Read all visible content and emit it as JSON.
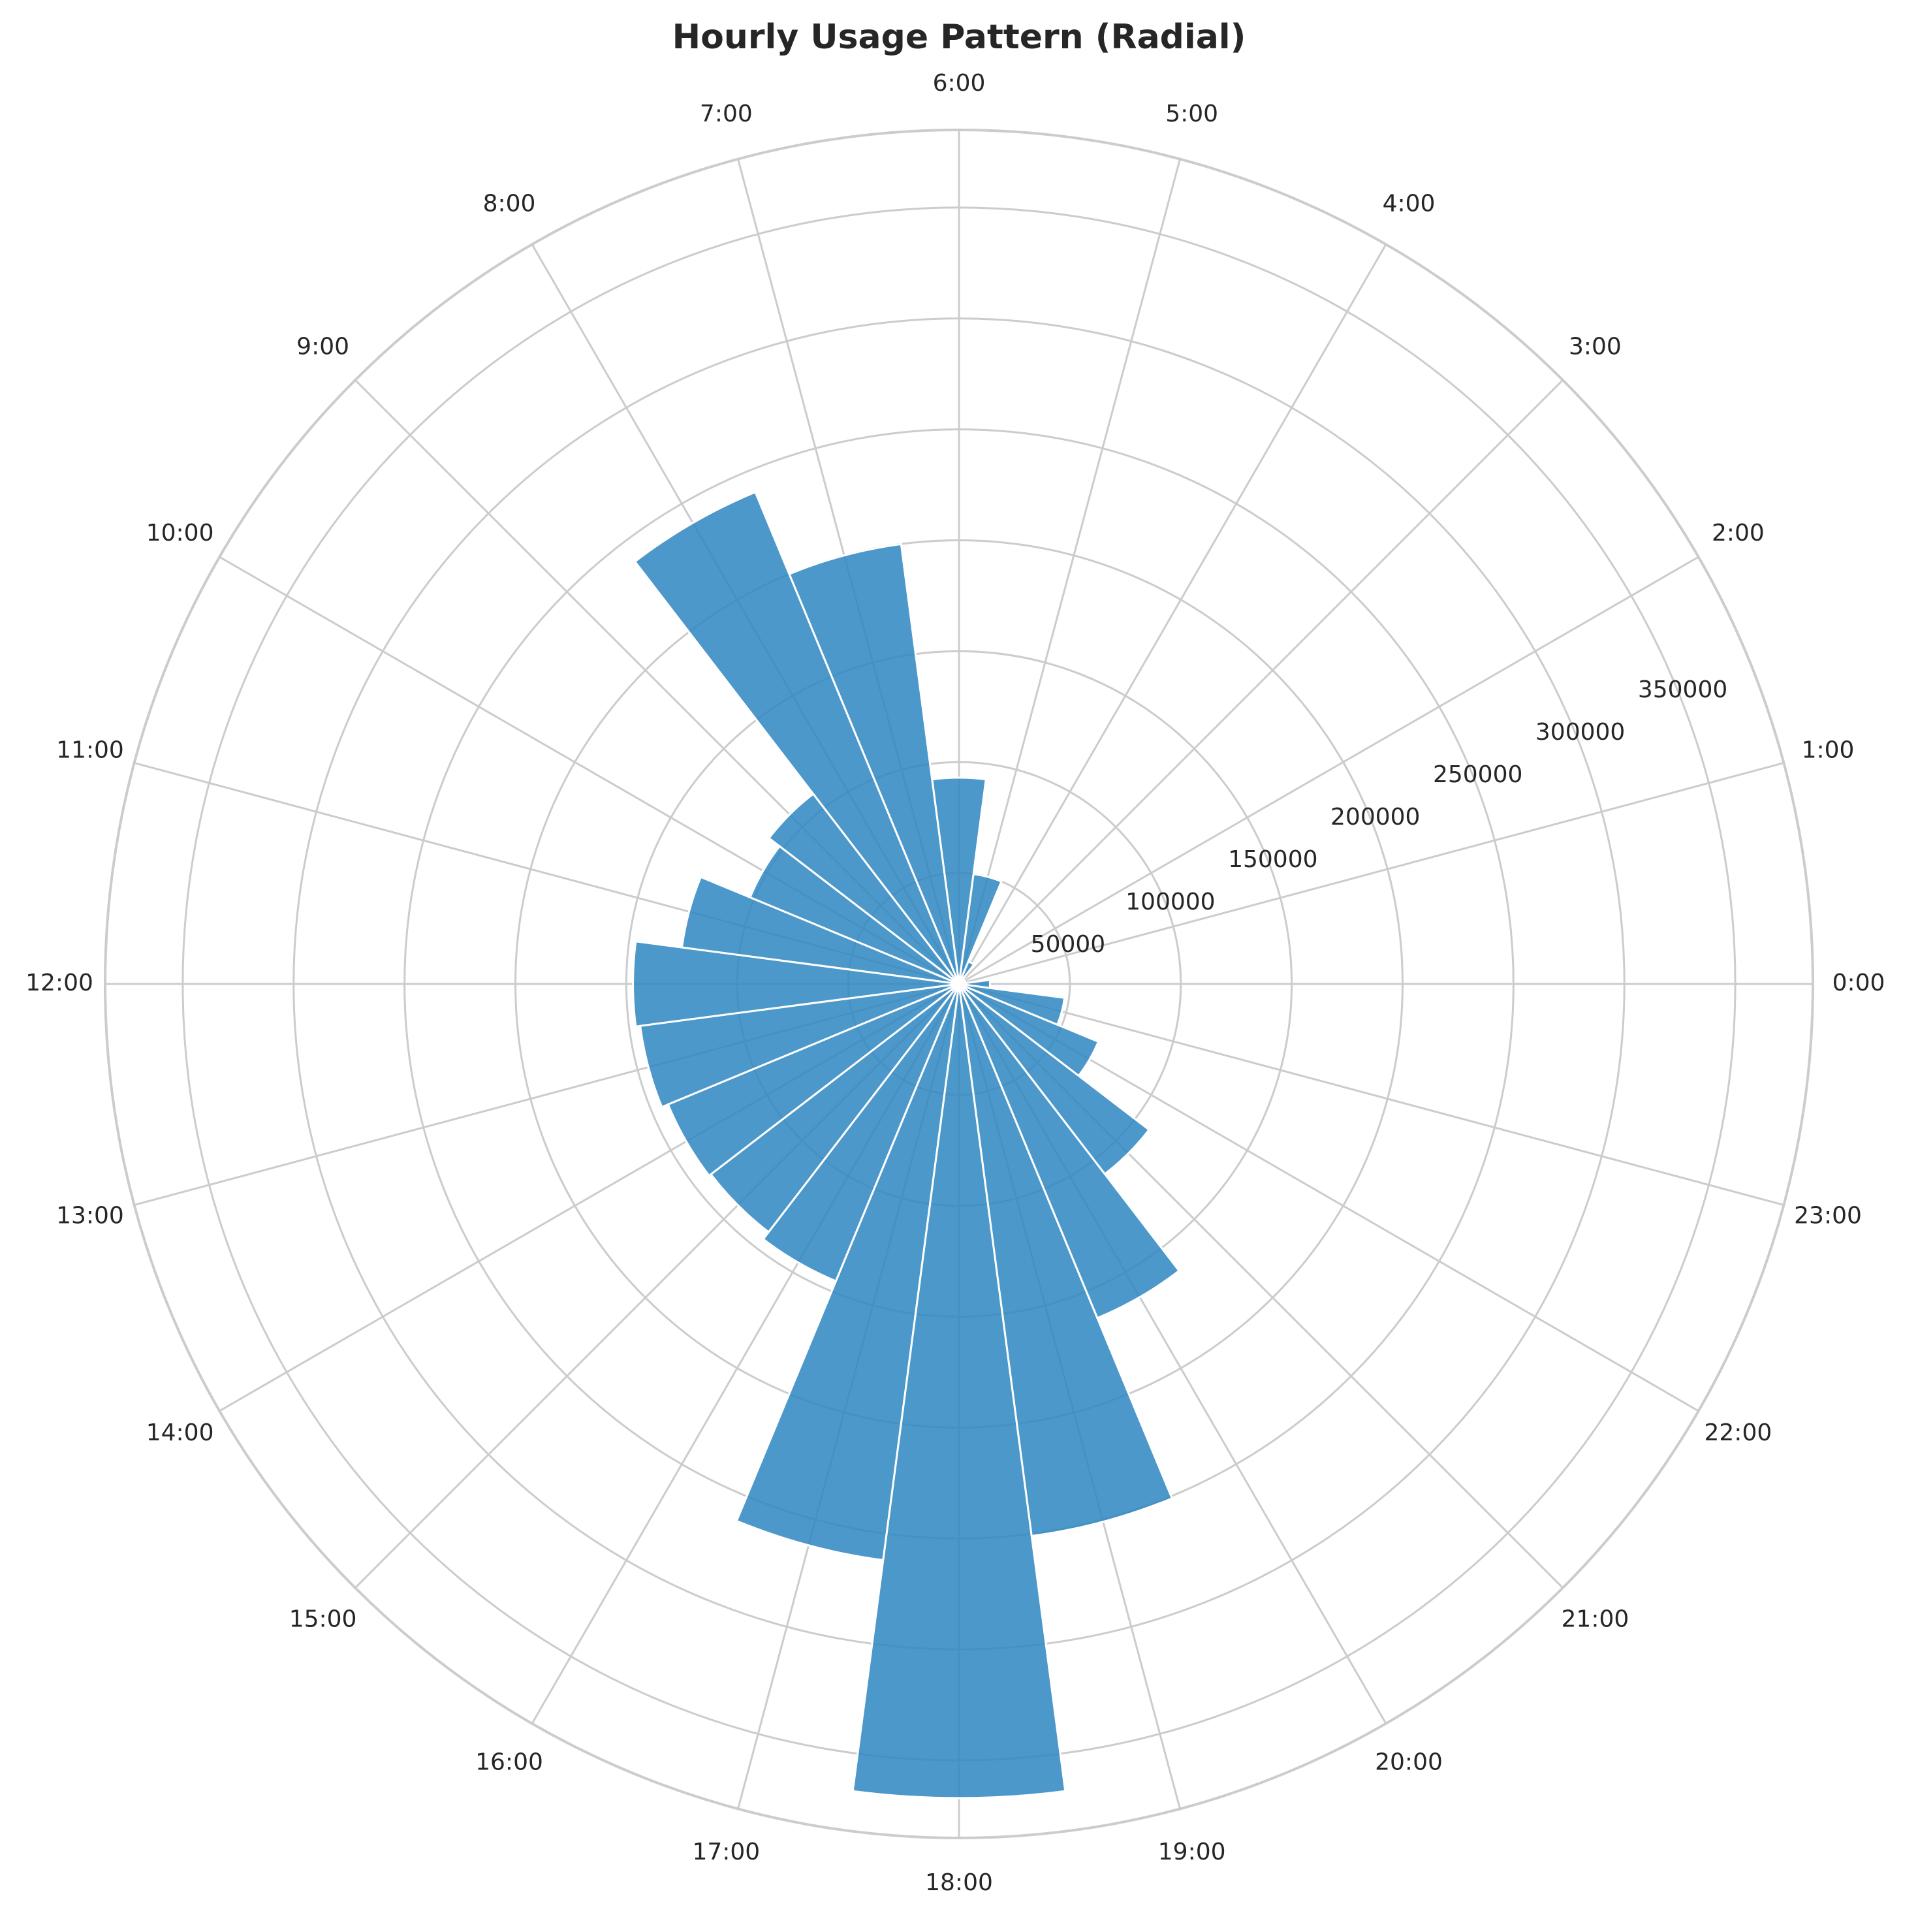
{
  "chart_data": {
    "type": "bar",
    "subtype": "polar",
    "title": "Hourly Usage Pattern (Radial)",
    "xlabel": "",
    "ylabel": "",
    "categories": [
      "0:00",
      "1:00",
      "2:00",
      "3:00",
      "4:00",
      "5:00",
      "6:00",
      "7:00",
      "8:00",
      "9:00",
      "10:00",
      "11:00",
      "12:00",
      "13:00",
      "14:00",
      "15:00",
      "16:00",
      "17:00",
      "18:00",
      "19:00",
      "20:00",
      "21:00",
      "22:00",
      "23:00"
    ],
    "values": [
      14000,
      3000,
      3000,
      3000,
      11000,
      50000,
      93000,
      200000,
      240000,
      108000,
      102000,
      126000,
      147000,
      145000,
      142000,
      141000,
      145000,
      262000,
      367000,
      251000,
      163000,
      108000,
      68000,
      48000
    ],
    "ylim": [
      0,
      385000
    ],
    "radial_ticks": [
      50000,
      100000,
      150000,
      200000,
      250000,
      300000,
      350000
    ],
    "radial_tick_labels": [
      "50000",
      "100000",
      "150000",
      "200000",
      "250000",
      "300000",
      "350000"
    ],
    "grid": true,
    "bar_color": "#2e86c1",
    "bar_opacity": 0.85,
    "grid_color": "#cccccc",
    "direction": "counterclockwise",
    "zero_location": "east"
  }
}
